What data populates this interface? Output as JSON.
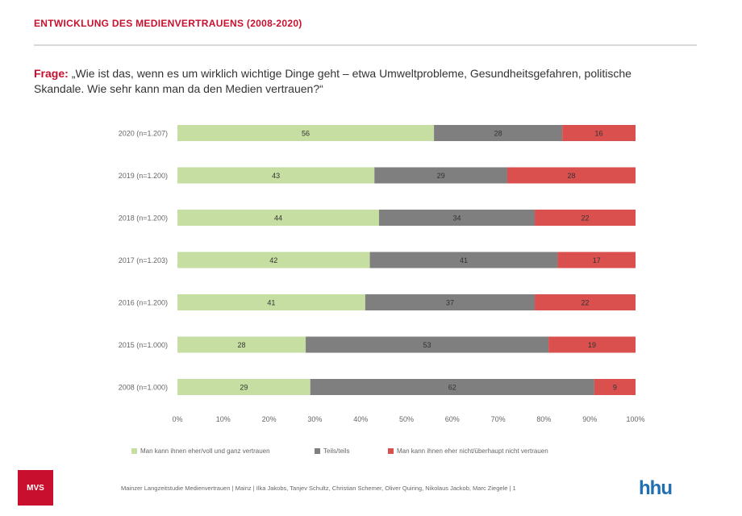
{
  "header": {
    "title": "ENTWICKLUNG DES MEDIENVERTRAUENS (2008-2020)"
  },
  "question": {
    "label": "Frage:",
    "text": "„Wie ist das, wenn es um wirklich wichtige Dinge geht – etwa Umweltprobleme, Gesundheitsgefahren, politische Skandale. Wie sehr kann man da den Medien vertrauen?“"
  },
  "footer": {
    "left_logo": "MVS",
    "credits": "Mainzer Langzeitstudie Medienvertrauen | Mainz | Ilka Jakobs, Tanjev Schultz, Christian Schemer, Oliver Quiring, Nikolaus Jackob, Marc Ziegele | 1",
    "right_logo": "hhu"
  },
  "colors": {
    "trust": "#c6dea1",
    "partly": "#7f7f7f",
    "distrust": "#d9504f",
    "title_red": "#c8102e"
  },
  "chart_data": {
    "type": "bar",
    "orientation": "horizontal",
    "stacked": true,
    "categories": [
      "2020 (n=1.207)",
      "2019 (n=1.200)",
      "2018 (n=1.200)",
      "2017 (n=1.203)",
      "2016 (n=1.200)",
      "2015 (n=1.000)",
      "2008 (n=1.000)"
    ],
    "series": [
      {
        "name": "Man kann ihnen eher/voll und ganz vertrauen",
        "values": [
          56,
          43,
          44,
          42,
          41,
          28,
          29
        ]
      },
      {
        "name": "Teils/teils",
        "values": [
          28,
          29,
          34,
          41,
          37,
          53,
          62
        ]
      },
      {
        "name": "Man kann ihnen eher nicht/überhaupt nicht vertrauen",
        "values": [
          16,
          28,
          22,
          17,
          22,
          19,
          9
        ]
      }
    ],
    "xlim": [
      0,
      100
    ],
    "xticks": [
      "0%",
      "10%",
      "20%",
      "30%",
      "40%",
      "50%",
      "60%",
      "70%",
      "80%",
      "90%",
      "100%"
    ],
    "legend_position": "bottom",
    "grid": false
  }
}
